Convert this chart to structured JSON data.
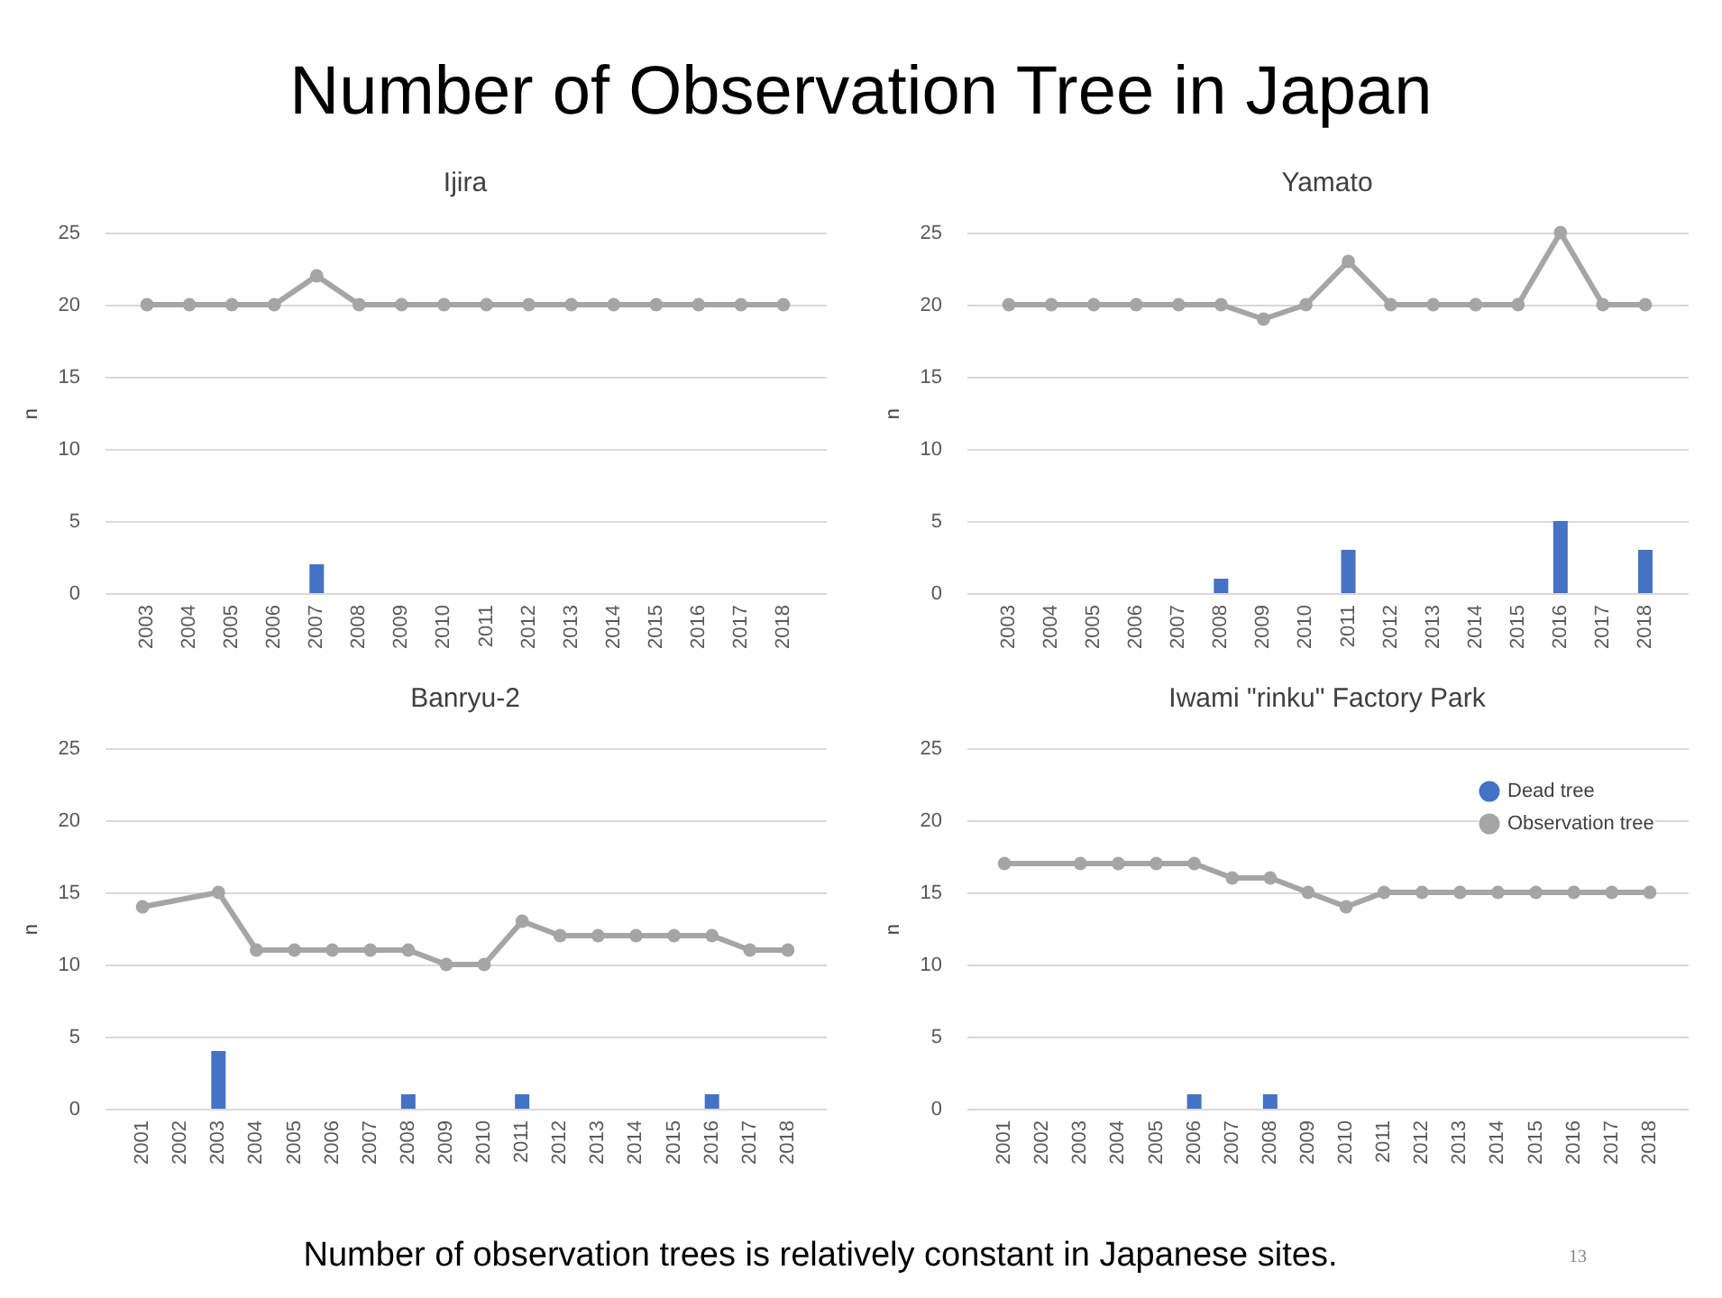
{
  "chart_data": [
    {
      "type": "bar",
      "title": "Ijira",
      "ylabel": "n",
      "annotations": [
        "Number of Observation Tree in Japan"
      ],
      "categories": [
        "2003",
        "2004",
        "2005",
        "2006",
        "2007",
        "2008",
        "2009",
        "2010",
        "2011",
        "2012",
        "2013",
        "2014",
        "2015",
        "2016",
        "2017",
        "2018"
      ],
      "ylim": [
        0,
        25
      ],
      "yticks": [
        0,
        5,
        10,
        15,
        20,
        25
      ],
      "grid": "y",
      "marker": "circle",
      "series": [
        {
          "type": "bar",
          "color": "#4472c4",
          "values": [
            null,
            null,
            null,
            null,
            2,
            null,
            null,
            null,
            null,
            null,
            null,
            null,
            null,
            null,
            null,
            null
          ]
        },
        {
          "type": "line",
          "color": "#a5a5a5",
          "values": [
            20,
            20,
            20,
            20,
            22,
            20,
            20,
            20,
            20,
            20,
            20,
            20,
            20,
            20,
            20,
            20
          ]
        }
      ]
    },
    {
      "type": "bar",
      "title": "Yamato",
      "ylabel": "n",
      "categories": [
        "2003",
        "2004",
        "2005",
        "2006",
        "2007",
        "2008",
        "2009",
        "2010",
        "2011",
        "2012",
        "2013",
        "2014",
        "2015",
        "2016",
        "2017",
        "2018"
      ],
      "ylim": [
        0,
        25
      ],
      "yticks": [
        0,
        5,
        10,
        15,
        20,
        25
      ],
      "grid": "y",
      "marker": "circle",
      "series": [
        {
          "type": "bar",
          "color": "#4472c4",
          "values": [
            null,
            null,
            null,
            null,
            null,
            1,
            null,
            null,
            3,
            null,
            null,
            null,
            null,
            5,
            null,
            3
          ]
        },
        {
          "type": "line",
          "color": "#a5a5a5",
          "values": [
            20,
            20,
            20,
            20,
            20,
            20,
            19,
            20,
            23,
            20,
            20,
            20,
            20,
            25,
            20,
            20
          ]
        }
      ]
    },
    {
      "type": "bar",
      "title": "Banryu-2",
      "ylabel": "n",
      "categories": [
        "2001",
        "2002",
        "2003",
        "2004",
        "2005",
        "2006",
        "2007",
        "2008",
        "2009",
        "2010",
        "2011",
        "2012",
        "2013",
        "2014",
        "2015",
        "2016",
        "2017",
        "2018"
      ],
      "ylim": [
        0,
        25
      ],
      "yticks": [
        0,
        5,
        10,
        15,
        20,
        25
      ],
      "grid": "y",
      "marker": "circle",
      "series": [
        {
          "type": "bar",
          "color": "#4472c4",
          "values": [
            null,
            null,
            4,
            null,
            null,
            null,
            null,
            1,
            null,
            null,
            1,
            null,
            null,
            null,
            null,
            1,
            null,
            null
          ]
        },
        {
          "type": "line",
          "color": "#a5a5a5",
          "values": [
            14,
            null,
            15,
            11,
            11,
            11,
            11,
            11,
            10,
            10,
            13,
            12,
            12,
            12,
            12,
            12,
            11,
            11
          ]
        }
      ]
    },
    {
      "type": "bar",
      "title": "Iwami \"rinku\" Factory Park",
      "ylabel": "n",
      "annotations": [
        "Number of observation trees is relatively constant in Japanese sites.",
        "13"
      ],
      "categories": [
        "2001",
        "2002",
        "2003",
        "2004",
        "2005",
        "2006",
        "2007",
        "2008",
        "2009",
        "2010",
        "2011",
        "2012",
        "2013",
        "2014",
        "2015",
        "2016",
        "2017",
        "2018"
      ],
      "ylim": [
        0,
        25
      ],
      "yticks": [
        0,
        5,
        10,
        15,
        20,
        25
      ],
      "grid": "y",
      "marker": "circle",
      "legend": "top right",
      "series": [
        {
          "type": "bar",
          "name": "Dead tree",
          "color": "#4472c4",
          "values": [
            null,
            null,
            null,
            null,
            null,
            1,
            null,
            1,
            null,
            null,
            null,
            null,
            null,
            null,
            null,
            null,
            null,
            null
          ]
        },
        {
          "type": "line",
          "name": "Observation tree",
          "color": "#a5a5a5",
          "values": [
            17,
            null,
            17,
            17,
            17,
            17,
            16,
            16,
            15,
            14,
            15,
            15,
            15,
            15,
            15,
            15,
            15,
            15
          ]
        }
      ]
    }
  ]
}
